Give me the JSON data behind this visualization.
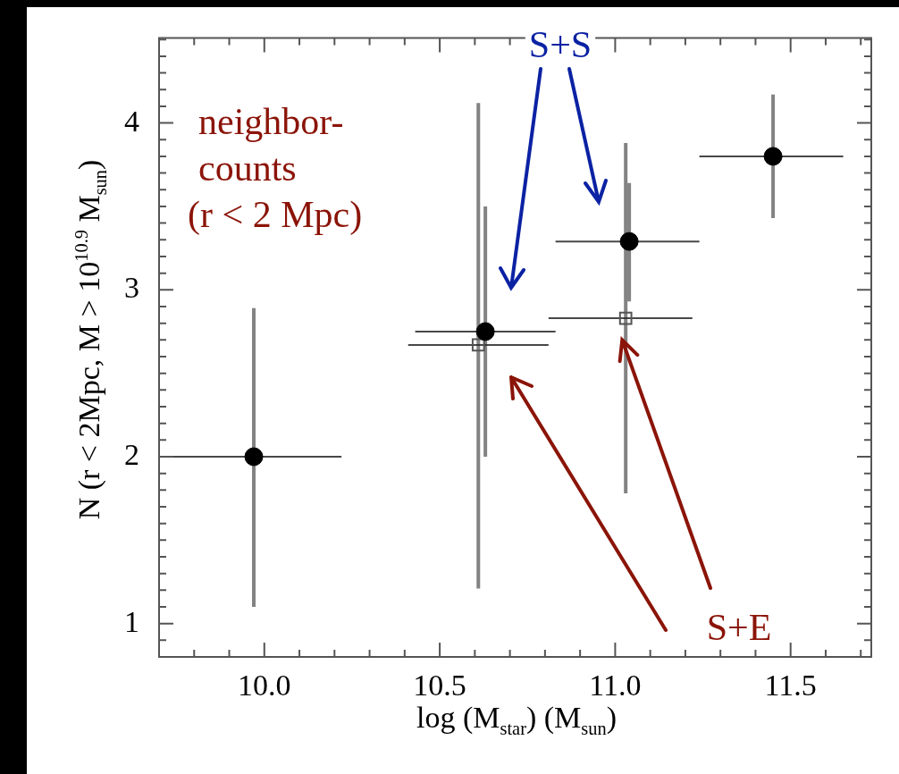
{
  "chart_data": {
    "type": "scatter",
    "xlabel": "log (M$_{star}$) (M$_{sun}$)",
    "ylabel": "N (r < 2Mpc, M > 10$^{10.9}$ M$_{sun}$)",
    "xlim": [
      9.7,
      11.73
    ],
    "ylim": [
      0.8,
      4.51
    ],
    "xticks": [
      {
        "value": 9.8,
        "label": null
      },
      {
        "value": 9.9,
        "label": null
      },
      {
        "value": 10,
        "label": "10.0"
      },
      {
        "value": 10.1,
        "label": null
      },
      {
        "value": 10.2,
        "label": null
      },
      {
        "value": 10.3,
        "label": null
      },
      {
        "value": 10.4,
        "label": null
      },
      10.5,
      {
        "value": 10.6,
        "label": null
      },
      {
        "value": 10.7,
        "label": null
      },
      {
        "value": 10.8,
        "label": null
      },
      {
        "value": 10.9,
        "label": null
      },
      {
        "value": 11,
        "label": "11.0"
      },
      {
        "value": 11.1,
        "label": null
      },
      {
        "value": 11.2,
        "label": null
      },
      {
        "value": 11.3,
        "label": null
      },
      {
        "value": 11.4,
        "label": null
      },
      11.5,
      {
        "value": 11.6,
        "label": null
      },
      {
        "value": 11.7,
        "label": null
      }
    ],
    "yticks": [
      {
        "value": 0.9,
        "label": null
      },
      1,
      {
        "value": 1.1,
        "label": null
      },
      {
        "value": 1.2,
        "label": null
      },
      {
        "value": 1.3,
        "label": null
      },
      {
        "value": 1.4,
        "label": null
      },
      {
        "value": 1.5,
        "label": null
      },
      {
        "value": 1.6,
        "label": null
      },
      {
        "value": 1.7,
        "label": null
      },
      {
        "value": 1.8,
        "label": null
      },
      {
        "value": 1.9,
        "label": null
      },
      2,
      {
        "value": 2.1,
        "label": null
      },
      {
        "value": 2.2,
        "label": null
      },
      {
        "value": 2.3,
        "label": null
      },
      {
        "value": 2.4,
        "label": null
      },
      {
        "value": 2.5,
        "label": null
      },
      {
        "value": 2.6,
        "label": null
      },
      {
        "value": 2.7,
        "label": null
      },
      {
        "value": 2.8,
        "label": null
      },
      {
        "value": 2.9,
        "label": null
      },
      3,
      {
        "value": 3.1,
        "label": null
      },
      {
        "value": 3.2,
        "label": null
      },
      {
        "value": 3.3,
        "label": null
      },
      {
        "value": 3.4,
        "label": null
      },
      {
        "value": 3.5,
        "label": null
      },
      {
        "value": 3.6,
        "label": null
      },
      {
        "value": 3.7,
        "label": null
      },
      {
        "value": 3.8,
        "label": null
      },
      {
        "value": 3.9,
        "label": null
      },
      4,
      {
        "value": 4.1,
        "label": null
      },
      {
        "value": 4.2,
        "label": null
      },
      {
        "value": 4.3,
        "label": null
      },
      {
        "value": 4.4,
        "label": null
      },
      {
        "value": 4.5,
        "label": null
      }
    ],
    "grid": false,
    "legend": false,
    "series": [
      {
        "color": "#000000",
        "marker": "circle",
        "x": [
          9.97,
          10.63,
          11.04,
          11.45
        ],
        "values": [
          2.0,
          2.75,
          3.29,
          3.8
        ],
        "errors": [
          [
            1.1,
            2.89
          ],
          [
            2.0,
            3.5
          ],
          [
            2.93,
            3.64
          ],
          [
            3.43,
            4.17
          ]
        ],
        "xerrors": [
          [
            9.71,
            10.22
          ],
          [
            10.43,
            10.83
          ],
          [
            10.83,
            11.24
          ],
          [
            11.24,
            11.65
          ]
        ]
      },
      {
        "color": "#555555",
        "marker": "square",
        "x": [
          10.61,
          11.03
        ],
        "values": [
          2.67,
          2.83
        ],
        "errors": [
          [
            1.21,
            4.12
          ],
          [
            1.78,
            3.88
          ]
        ],
        "xerrors": [
          [
            10.41,
            10.81
          ],
          [
            10.81,
            11.22
          ]
        ]
      }
    ],
    "annotations": [
      "neighbor-\ncounts\n(r < 2 Mpc)",
      "S+S",
      {
        "text": "S+E",
        "x": 11.02,
        "y": 2.7
      }
    ]
  }
}
